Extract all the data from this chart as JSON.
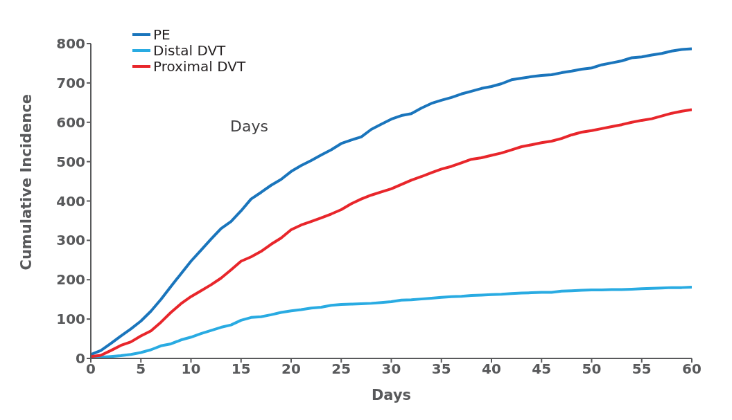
{
  "chart_data": {
    "type": "line",
    "xlabel": "Days",
    "ylabel": "Cumulative Incidence",
    "annotations": [
      "Days"
    ],
    "x": [
      0,
      1,
      2,
      3,
      4,
      5,
      6,
      7,
      8,
      9,
      10,
      11,
      12,
      13,
      14,
      15,
      16,
      17,
      18,
      19,
      20,
      21,
      22,
      23,
      24,
      25,
      26,
      27,
      28,
      29,
      30,
      31,
      32,
      33,
      34,
      35,
      36,
      37,
      38,
      39,
      40,
      41,
      42,
      43,
      44,
      45,
      46,
      47,
      48,
      49,
      50,
      51,
      52,
      53,
      54,
      55,
      56,
      57,
      58,
      59,
      60
    ],
    "series": [
      {
        "name": "PE",
        "color": "#1a75bc",
        "values": [
          10,
          20,
          38,
          57,
          75,
          95,
          120,
          150,
          183,
          215,
          247,
          275,
          303,
          330,
          348,
          375,
          405,
          422,
          440,
          455,
          475,
          490,
          503,
          517,
          530,
          546,
          555,
          563,
          582,
          595,
          608,
          617,
          622,
          636,
          648,
          656,
          663,
          672,
          679,
          686,
          691,
          698,
          708,
          712,
          716,
          719,
          721,
          726,
          730,
          735,
          738,
          746,
          751,
          756,
          764,
          766,
          771,
          775,
          781,
          785,
          787
        ]
      },
      {
        "name": "Distal DVT",
        "color": "#29abe2",
        "values": [
          2,
          3,
          5,
          7,
          10,
          15,
          22,
          32,
          37,
          47,
          54,
          63,
          71,
          79,
          85,
          97,
          104,
          106,
          111,
          117,
          121,
          124,
          128,
          130,
          135,
          137,
          138,
          139,
          140,
          142,
          144,
          148,
          149,
          151,
          153,
          155,
          157,
          158,
          160,
          161,
          162,
          163,
          165,
          166,
          167,
          168,
          168,
          171,
          172,
          173,
          174,
          174,
          175,
          175,
          176,
          177,
          178,
          179,
          180,
          180,
          181
        ]
      },
      {
        "name": "Proximal DVT",
        "color": "#e8262b",
        "values": [
          5,
          8,
          20,
          33,
          42,
          57,
          70,
          92,
          117,
          139,
          157,
          172,
          187,
          204,
          225,
          247,
          258,
          272,
          290,
          306,
          327,
          339,
          348,
          357,
          367,
          378,
          393,
          405,
          415,
          423,
          431,
          442,
          453,
          462,
          472,
          481,
          488,
          497,
          506,
          510,
          516,
          522,
          530,
          538,
          543,
          548,
          552,
          559,
          568,
          575,
          579,
          584,
          589,
          594,
          600,
          605,
          609,
          616,
          623,
          628,
          632
        ]
      }
    ],
    "xlim": [
      0,
      60
    ],
    "xticks": [
      0,
      5,
      10,
      15,
      20,
      25,
      30,
      35,
      40,
      45,
      50,
      55,
      60
    ],
    "ylim": [
      0,
      800
    ],
    "yticks": [
      0,
      100,
      200,
      300,
      400,
      500,
      600,
      700,
      800
    ],
    "grid": false,
    "legend": "top left",
    "marker": "none",
    "line_style": "solid"
  }
}
